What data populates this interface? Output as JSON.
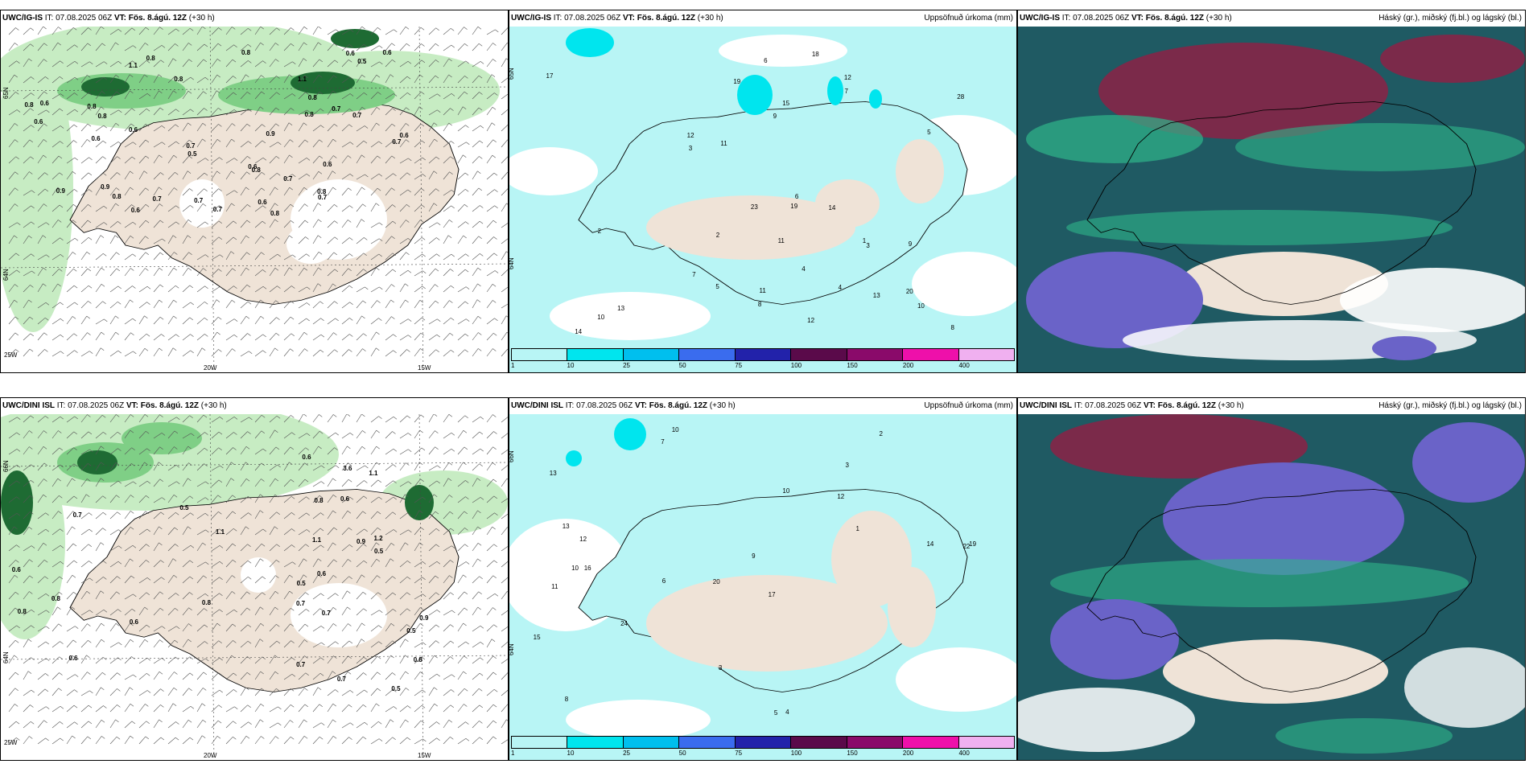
{
  "colors": {
    "land": "#efe3d7",
    "sea_white": "#ffffff",
    "green_light": "#c7ecc3",
    "green_mid": "#7fcf86",
    "green_dark": "#1e6b33",
    "precip_cyan": "#b8f5f5",
    "cloud_teal": "#1f5a63",
    "cloud_green": "#2fb58a",
    "cloud_maroon": "#7b2a4a",
    "cloud_purple": "#6a63c8"
  },
  "top": {
    "left": {
      "model": "UWC/IG-IS",
      "it": "IT: 07.08.2025 06Z",
      "vt_label": "VT:",
      "vt": "Fös. 8.ágú. 12Z",
      "lead": "(+30 h)",
      "lat1": "65N",
      "lat2": "64N",
      "lon1": "25W",
      "lon2": "20W",
      "lon3": "15W",
      "values": [
        "0.8",
        "1.1",
        "0.9",
        "0.8",
        "0.7",
        "0.6",
        "0.7",
        "0.6",
        "0.5",
        "0.8",
        "0.9",
        "0.8",
        "0.7",
        "0.6",
        "0.8",
        "0.6",
        "0.6",
        "0.5",
        "0.6",
        "0.7",
        "0.8",
        "0.8",
        "0.6",
        "0.7",
        "0.9",
        "0.8",
        "0.6",
        "0.8",
        "0.7",
        "0.8",
        "0.7",
        "0.6",
        "1.1",
        "0.7",
        "0.8",
        "0.7",
        "0.8",
        "0.6",
        "0.6"
      ]
    },
    "mid": {
      "model": "UWC/IG-IS",
      "it": "IT: 07.08.2025 06Z",
      "vt_label": "VT:",
      "vt": "Fös. 8.ágú. 12Z",
      "lead": "(+30 h)",
      "title": "Uppsöfnuð úrkoma (mm)",
      "lat1": "65N",
      "lat2": "64N",
      "colorbar_colors": [
        "#b8f5f5",
        "#00e5ee",
        "#00bfee",
        "#3a6cee",
        "#2222aa",
        "#5a0a4a",
        "#8a0a6a",
        "#ee10aa",
        "#f0b0f0"
      ],
      "colorbar_ticks": [
        "1",
        "10",
        "25",
        "50",
        "75",
        "100",
        "150",
        "200",
        "400"
      ],
      "values": [
        "10",
        "9",
        "6",
        "11",
        "19",
        "18",
        "20",
        "12",
        "13",
        "7",
        "8",
        "3",
        "5",
        "6",
        "4",
        "12",
        "1",
        "2",
        "23",
        "28",
        "17",
        "13",
        "8",
        "14",
        "3",
        "7",
        "11",
        "9",
        "5",
        "4",
        "10",
        "2",
        "15",
        "14",
        "19",
        "12",
        "11"
      ]
    },
    "right": {
      "model": "UWC/IG-IS",
      "it": "IT: 07.08.2025 06Z",
      "vt_label": "VT:",
      "vt": "Fös. 8.ágú. 12Z",
      "lead": "(+30 h)",
      "title": "Háský (gr.), miðský (fj.bl.) og lágský (bl.)"
    }
  },
  "bottom": {
    "left": {
      "model": "UWC/DINI ISL",
      "it": "IT: 07.08.2025 06Z",
      "vt_label": "VT:",
      "vt": "Fös. 8.ágú. 12Z",
      "lead": "(+30 h)",
      "lat1": "66N",
      "lat2": "64N",
      "lon1": "25W",
      "lon2": "20W",
      "lon3": "15W",
      "values": [
        "0.7",
        "0.9",
        "0.9",
        "0.5",
        "0.7",
        "0.6",
        "1.2",
        "1.1",
        "0.8",
        "0.7",
        "0.6",
        "0.5",
        "0.8",
        "0.7",
        "0.6",
        "0.5",
        "1.1",
        "0.8",
        "3.6",
        "0.5",
        "0.8",
        "0.6",
        "1.1",
        "0.6",
        "0.5",
        "0.6",
        "0.7",
        "0.8"
      ]
    },
    "mid": {
      "model": "UWC/DINI ISL",
      "it": "IT: 07.08.2025 06Z",
      "vt_label": "VT:",
      "vt": "Fös. 8.ágú. 12Z",
      "lead": "(+30 h)",
      "title": "Uppsöfnuð úrkoma (mm)",
      "lat1": "66N",
      "lat2": "64N",
      "colorbar_colors": [
        "#b8f5f5",
        "#00e5ee",
        "#00bfee",
        "#3a6cee",
        "#2222aa",
        "#5a0a4a",
        "#8a0a6a",
        "#ee10aa",
        "#f0b0f0"
      ],
      "colorbar_ticks": [
        "1",
        "10",
        "25",
        "50",
        "75",
        "100",
        "150",
        "200",
        "400"
      ],
      "values": [
        "10",
        "3",
        "22",
        "20",
        "17",
        "16",
        "13",
        "12",
        "11",
        "10",
        "9",
        "8",
        "7",
        "6",
        "5",
        "4",
        "3",
        "2",
        "1",
        "24",
        "12",
        "10",
        "19",
        "14",
        "15",
        "13"
      ]
    },
    "right": {
      "model": "UWC/DINI ISL",
      "it": "IT: 07.08.2025 06Z",
      "vt_label": "VT:",
      "vt": "Fös. 8.ágú. 12Z",
      "lead": "(+30 h)",
      "title": "Háský (gr.), miðský (fj.bl.) og lágský (bl.)"
    }
  }
}
